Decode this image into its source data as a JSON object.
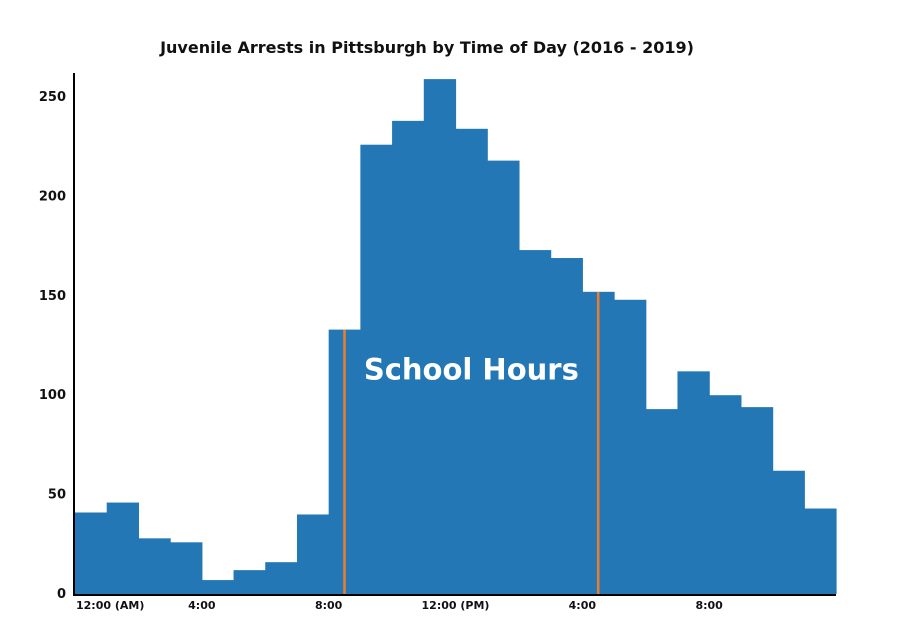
{
  "chart_data": {
    "type": "bar",
    "title": "Juvenile Arrests in Pittsburgh by Time of Day (2016 - 2019)",
    "xlabel": "",
    "ylabel": "",
    "ylim": [
      0,
      265
    ],
    "categories": [
      "0",
      "1",
      "2",
      "3",
      "4",
      "5",
      "6",
      "7",
      "8",
      "9",
      "10",
      "11",
      "12",
      "13",
      "14",
      "15",
      "16",
      "17",
      "18",
      "19",
      "20",
      "21",
      "22",
      "23"
    ],
    "values": [
      41,
      46,
      28,
      26,
      7,
      12,
      16,
      40,
      133,
      226,
      238,
      259,
      234,
      218,
      173,
      169,
      152,
      148,
      93,
      112,
      100,
      94,
      62,
      43
    ],
    "yticks": [
      0,
      50,
      100,
      150,
      200,
      250
    ],
    "xticks": [
      {
        "hour": 0,
        "label": "12:00 (AM)"
      },
      {
        "hour": 4,
        "label": "4:00"
      },
      {
        "hour": 8,
        "label": "8:00"
      },
      {
        "hour": 12,
        "label": "12:00 (PM)"
      },
      {
        "hour": 16,
        "label": "4:00"
      },
      {
        "hour": 20,
        "label": "8:00"
      }
    ],
    "bar_color": "#2277b4",
    "marker_color": "#ee7d2b",
    "markers": [
      8.5,
      16.5
    ],
    "annotation": {
      "text": "School Hours",
      "hour": 12.5,
      "y": 113
    },
    "grid": false,
    "legend": "none"
  }
}
